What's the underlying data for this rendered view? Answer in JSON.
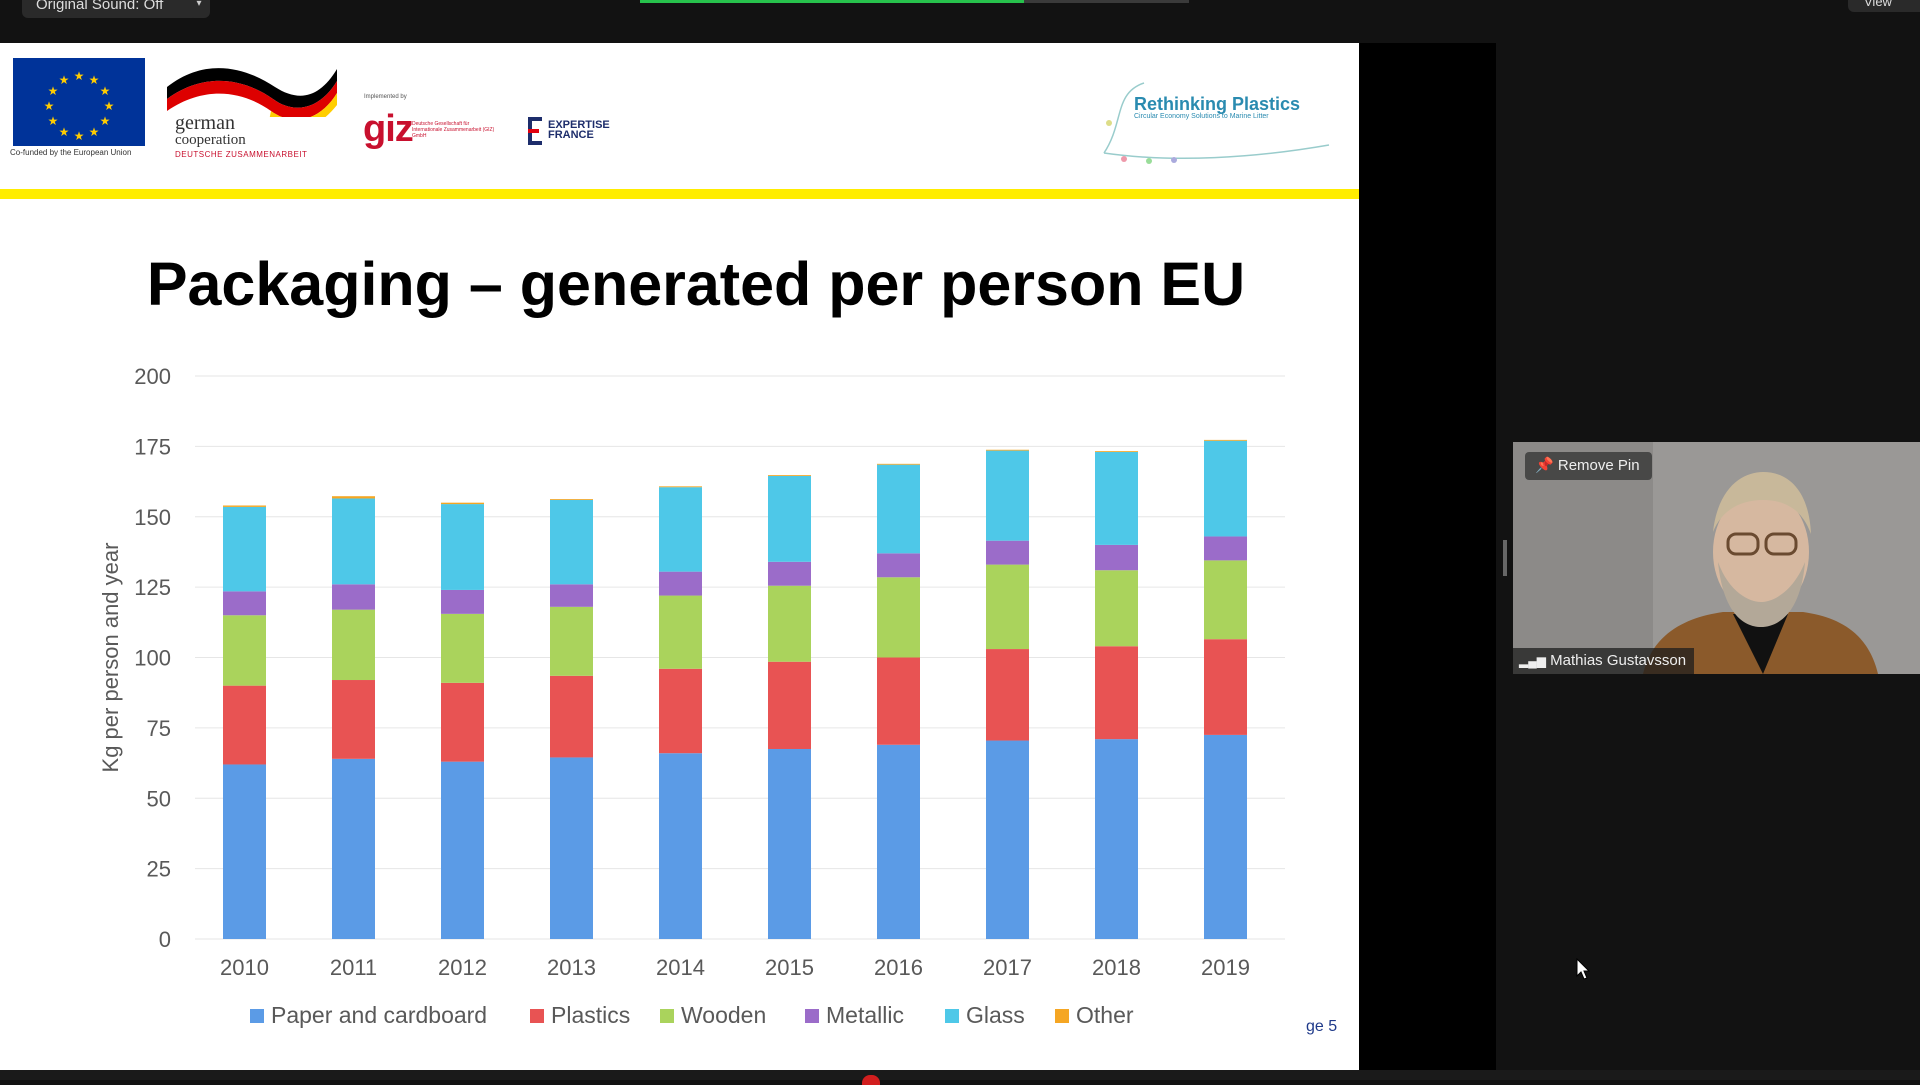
{
  "zoom": {
    "sound_label": "Original Sound: Off",
    "view_label": "View",
    "participant_name": "Mathias Gustavsson",
    "remove_pin_label": "Remove Pin"
  },
  "slide": {
    "title": "Packaging – generated per person EU",
    "page_number": "ge 5",
    "logos": {
      "eu_caption": "Co-funded by the European Union",
      "german_line1": "german",
      "german_line2": "cooperation",
      "german_line3": "DEUTSCHE ZUSAMMENARBEIT",
      "giz_implemented": "Implemented by",
      "giz_name": "giz",
      "giz_sub": "Deutsche Gesellschaft für Internationale Zusammenarbeit (GIZ) GmbH",
      "expertise_line1": "EXPERTISE",
      "expertise_line2": "FRANCE",
      "rp_title": "Rethinking Plastics",
      "rp_subtitle": "Circular Economy Solutions to Marine Litter"
    }
  },
  "colors": {
    "paper": "#5b9be6",
    "plastics": "#e85353",
    "wooden": "#aad35c",
    "metallic": "#9b6cc9",
    "glass": "#4ec8e8",
    "other": "#f5a623"
  },
  "chart_data": {
    "type": "bar",
    "stacked": true,
    "ylabel": "Kg per person and year",
    "ylim": [
      0,
      200
    ],
    "yticks": [
      0,
      25,
      50,
      75,
      100,
      125,
      150,
      175,
      200
    ],
    "grid": true,
    "legend_position": "bottom",
    "categories": [
      "2010",
      "2011",
      "2012",
      "2013",
      "2014",
      "2015",
      "2016",
      "2017",
      "2018",
      "2019"
    ],
    "series": [
      {
        "name": "Paper and cardboard",
        "color_key": "paper",
        "values": [
          62,
          64,
          63,
          64.5,
          66,
          67.5,
          69,
          70.5,
          71,
          72.5
        ]
      },
      {
        "name": "Plastics",
        "color_key": "plastics",
        "values": [
          28,
          28,
          28,
          29,
          30,
          31,
          31,
          32.5,
          33,
          34
        ]
      },
      {
        "name": "Wooden",
        "color_key": "wooden",
        "values": [
          25,
          25,
          24.5,
          24.5,
          26,
          27,
          28.5,
          30,
          27,
          28
        ]
      },
      {
        "name": "Metallic",
        "color_key": "metallic",
        "values": [
          8.5,
          9,
          8.5,
          8,
          8.5,
          8.5,
          8.5,
          8.5,
          9,
          8.5
        ]
      },
      {
        "name": "Glass",
        "color_key": "glass",
        "values": [
          30,
          30.5,
          30.5,
          30,
          30,
          30.5,
          31.5,
          32,
          33,
          34
        ]
      },
      {
        "name": "Other",
        "color_key": "other",
        "values": [
          0.5,
          0.8,
          0.5,
          0.3,
          0.3,
          0.3,
          0.3,
          0.3,
          0.3,
          0.3
        ]
      }
    ]
  }
}
